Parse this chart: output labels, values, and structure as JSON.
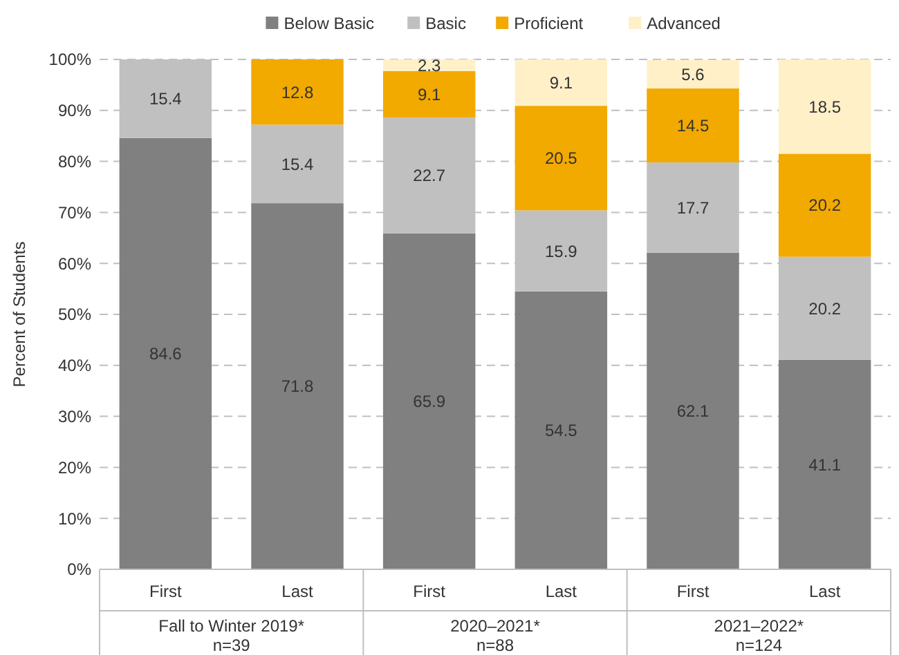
{
  "chart_data": {
    "type": "bar",
    "stacked": true,
    "ylabel": "Percent of Students",
    "categories": [
      "First",
      "Last",
      "First",
      "Last",
      "First",
      "Last"
    ],
    "series": [
      {
        "name": "Below Basic",
        "color": "#808080",
        "values": [
          84.6,
          71.8,
          65.9,
          54.5,
          62.1,
          41.1
        ]
      },
      {
        "name": "Basic",
        "color": "#c0c0c0",
        "values": [
          15.4,
          15.4,
          22.7,
          15.9,
          17.7,
          20.2
        ]
      },
      {
        "name": "Proficient",
        "color": "#f2a900",
        "values": [
          null,
          12.8,
          9.1,
          20.5,
          14.5,
          20.2
        ]
      },
      {
        "name": "Advanced",
        "color": "#fff0c8",
        "values": [
          null,
          null,
          2.3,
          9.1,
          5.6,
          18.5
        ]
      }
    ],
    "ylim": [
      0,
      100
    ],
    "yticks": [
      {
        "value": 0,
        "label": "0%"
      },
      {
        "value": 10,
        "label": "10%"
      },
      {
        "value": 20,
        "label": "20%"
      },
      {
        "value": 30,
        "label": "30%"
      },
      {
        "value": 40,
        "label": "40%"
      },
      {
        "value": 50,
        "label": "50%"
      },
      {
        "value": 60,
        "label": "60%"
      },
      {
        "value": 70,
        "label": "70%"
      },
      {
        "value": 80,
        "label": "80%"
      },
      {
        "value": 90,
        "label": "90%"
      },
      {
        "value": 100,
        "label": "100%"
      }
    ],
    "grid": "y",
    "legend": "top",
    "data_labels": true,
    "annotations": [
      "Fall to Winter 2019*\nn=39",
      "2020–2021*\nn=88",
      "2021–2022*\nn=124"
    ]
  }
}
